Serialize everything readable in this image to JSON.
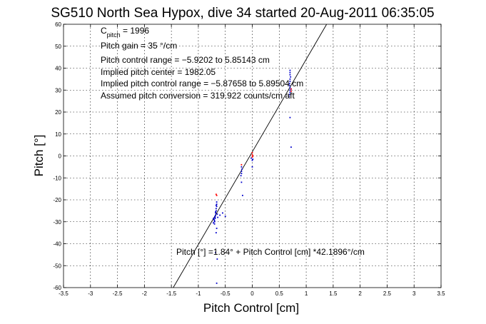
{
  "chart_data": {
    "type": "scatter",
    "title": "SG510 North Sea Hypox, dive 34 started 20-Aug-2011 06:35:05",
    "xlabel": "Pitch Control [cm]",
    "ylabel": "Pitch [°]",
    "xlim": [
      -3.5,
      3.5
    ],
    "ylim": [
      -60,
      60
    ],
    "xticks": [
      -3.5,
      -3,
      -2.5,
      -2,
      -1.5,
      -1,
      -0.5,
      0,
      0.5,
      1,
      1.5,
      2,
      2.5,
      3,
      3.5
    ],
    "yticks": [
      -60,
      -50,
      -40,
      -30,
      -20,
      -10,
      0,
      10,
      20,
      30,
      40,
      50,
      60
    ],
    "grid": true,
    "legend": "none",
    "annotations": {
      "cpitch_main": "C",
      "cpitch_sub": "pitch",
      "cpitch_value": " = 1996",
      "gain": "Pitch gain = 35 °/cm",
      "range": "Pitch control range = −5.9202 to 5.85143 cm",
      "center": "Implied pitch center = 1982.05",
      "implied_range": "Implied pitch control range = −5.87658 to 5.89504 cm",
      "conversion": "Assumed pitch conversion = 319.922 counts/cm aft",
      "fit": "Pitch [°] =1.84° + Pitch Control [cm] *42.1896°/cm"
    },
    "fit_line": {
      "intercept": 1.84,
      "slope": 42.1896,
      "color": "#000000"
    },
    "series": [
      {
        "color": "#0000cc",
        "points": [
          [
            -0.7,
            -29.5
          ],
          [
            -0.69,
            -28.5
          ],
          [
            -0.69,
            -27.5
          ],
          [
            -0.68,
            -27
          ],
          [
            -0.68,
            -26
          ],
          [
            -0.67,
            -25
          ],
          [
            -0.67,
            -24
          ],
          [
            -0.66,
            -23
          ],
          [
            -0.66,
            -22
          ],
          [
            -0.66,
            -21
          ],
          [
            -0.7,
            -30
          ],
          [
            -0.71,
            -29
          ],
          [
            -0.69,
            -28
          ],
          [
            -0.68,
            -25.5
          ],
          [
            -0.67,
            -22.5
          ],
          [
            -0.72,
            -28.5
          ],
          [
            -0.72,
            -30.5
          ],
          [
            -0.7,
            -31
          ],
          [
            -0.65,
            -26.5
          ],
          [
            -0.64,
            -28
          ],
          [
            -0.6,
            -27
          ],
          [
            -0.55,
            -26
          ],
          [
            -0.5,
            -27.5
          ],
          [
            -0.66,
            -33
          ],
          [
            -0.67,
            -35
          ],
          [
            -0.65,
            -47
          ],
          [
            -0.68,
            -44
          ],
          [
            -0.66,
            -58
          ],
          [
            -0.2,
            -7
          ],
          [
            -0.2,
            -8
          ],
          [
            -0.21,
            -9
          ],
          [
            -0.19,
            -6
          ],
          [
            -0.2,
            -5
          ],
          [
            -0.2,
            -12
          ],
          [
            -0.18,
            -18
          ],
          [
            -0.02,
            -1
          ],
          [
            0.0,
            -2
          ],
          [
            0.0,
            -5
          ],
          [
            0.01,
            -1.5
          ],
          [
            0.7,
            30
          ],
          [
            0.7,
            31
          ],
          [
            0.69,
            32
          ],
          [
            0.69,
            33
          ],
          [
            0.7,
            34
          ],
          [
            0.7,
            35
          ],
          [
            0.71,
            36
          ],
          [
            0.7,
            37
          ],
          [
            0.7,
            38
          ],
          [
            0.7,
            39
          ],
          [
            0.69,
            28
          ],
          [
            0.7,
            29
          ],
          [
            0.68,
            27
          ],
          [
            0.72,
            30.5
          ],
          [
            0.7,
            17.5
          ],
          [
            0.72,
            4
          ]
        ]
      },
      {
        "color": "#ff0000",
        "points": [
          [
            -0.67,
            -17.5
          ],
          [
            -0.66,
            -18
          ],
          [
            -0.2,
            -4
          ],
          [
            0.0,
            0.5
          ],
          [
            0.0,
            1.5
          ],
          [
            0.0,
            -0.5
          ],
          [
            0.01,
            0
          ],
          [
            0.72,
            29.5
          ],
          [
            0.72,
            30.5
          ]
        ]
      }
    ]
  }
}
